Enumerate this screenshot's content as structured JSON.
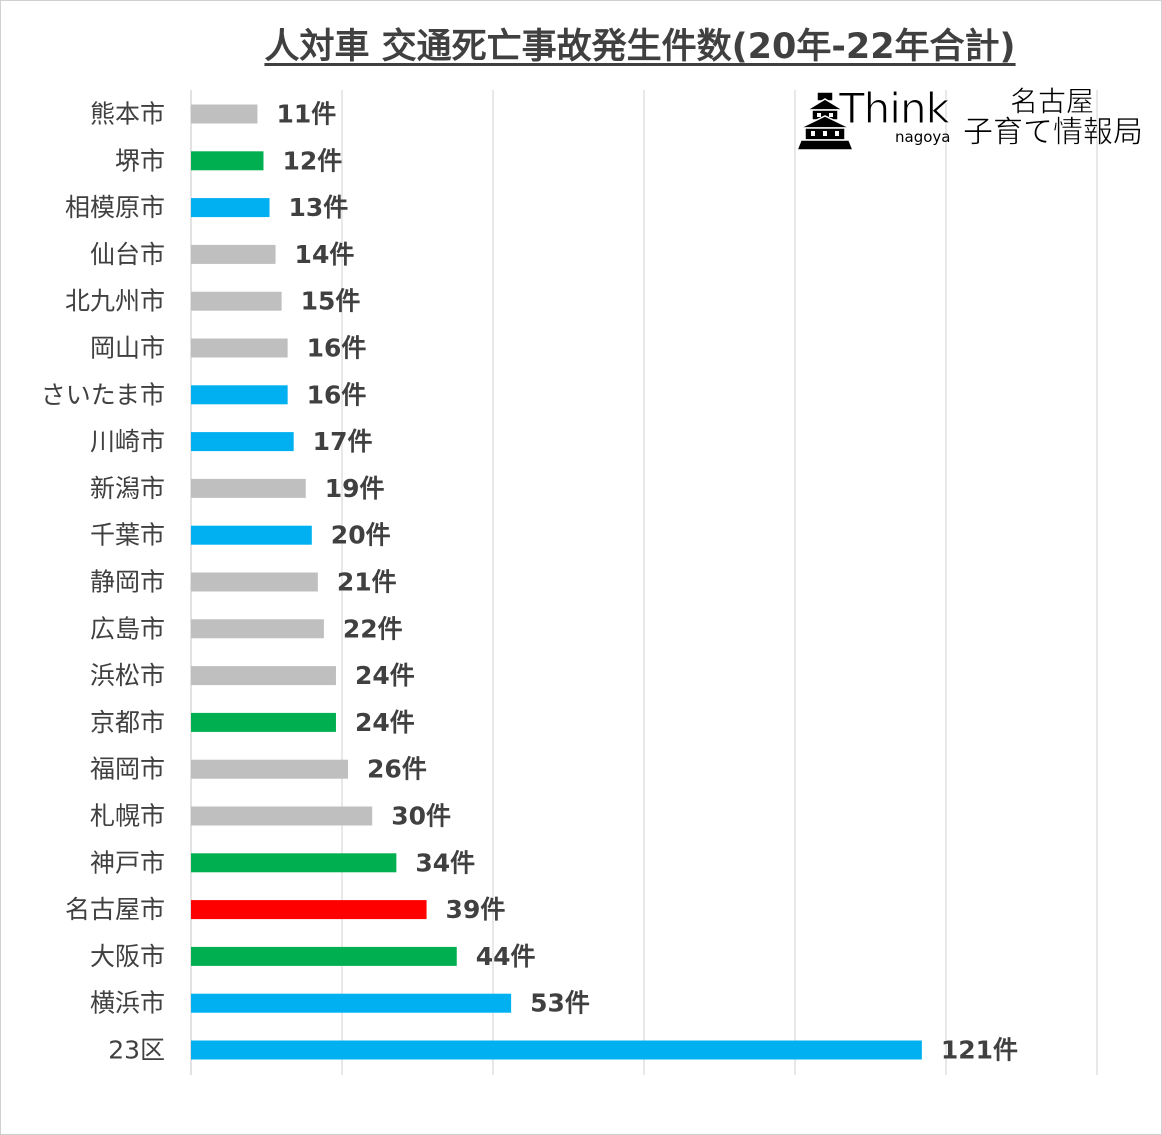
{
  "chart_data": {
    "type": "bar",
    "orientation": "horizontal",
    "title": "人対車 交通死亡事故発生件数(20年-22年合計)",
    "xlim": [
      0,
      150
    ],
    "grid": true,
    "categories": [
      "熊本市",
      "堺市",
      "相模原市",
      "仙台市",
      "北九州市",
      "岡山市",
      "さいたま市",
      "川崎市",
      "新潟市",
      "千葉市",
      "静岡市",
      "広島市",
      "浜松市",
      "京都市",
      "福岡市",
      "札幌市",
      "神戸市",
      "名古屋市",
      "大阪市",
      "横浜市",
      "23区"
    ],
    "values": [
      11,
      12,
      13,
      14,
      15,
      16,
      16,
      17,
      19,
      20,
      21,
      22,
      24,
      24,
      26,
      30,
      34,
      39,
      44,
      53,
      121
    ],
    "data_labels": [
      "11件",
      "12件",
      "13件",
      "14件",
      "15件",
      "16件",
      "16件",
      "17件",
      "19件",
      "20件",
      "21件",
      "22件",
      "24件",
      "24件",
      "26件",
      "30件",
      "34件",
      "39件",
      "44件",
      "53件",
      "121件"
    ],
    "bar_colors": [
      "#bfbfbf",
      "#00b050",
      "#00b0f0",
      "#bfbfbf",
      "#bfbfbf",
      "#bfbfbf",
      "#00b0f0",
      "#00b0f0",
      "#bfbfbf",
      "#00b0f0",
      "#bfbfbf",
      "#bfbfbf",
      "#bfbfbf",
      "#00b050",
      "#bfbfbf",
      "#bfbfbf",
      "#00b050",
      "#ff0000",
      "#00b050",
      "#00b0f0",
      "#00b0f0"
    ]
  },
  "logo": {
    "think": "Think",
    "nagoya": "nagoya",
    "line1": "名古屋",
    "line2": "子育て情報局"
  },
  "colors": {
    "text": "#404040",
    "grid": "#d9d9d9"
  }
}
